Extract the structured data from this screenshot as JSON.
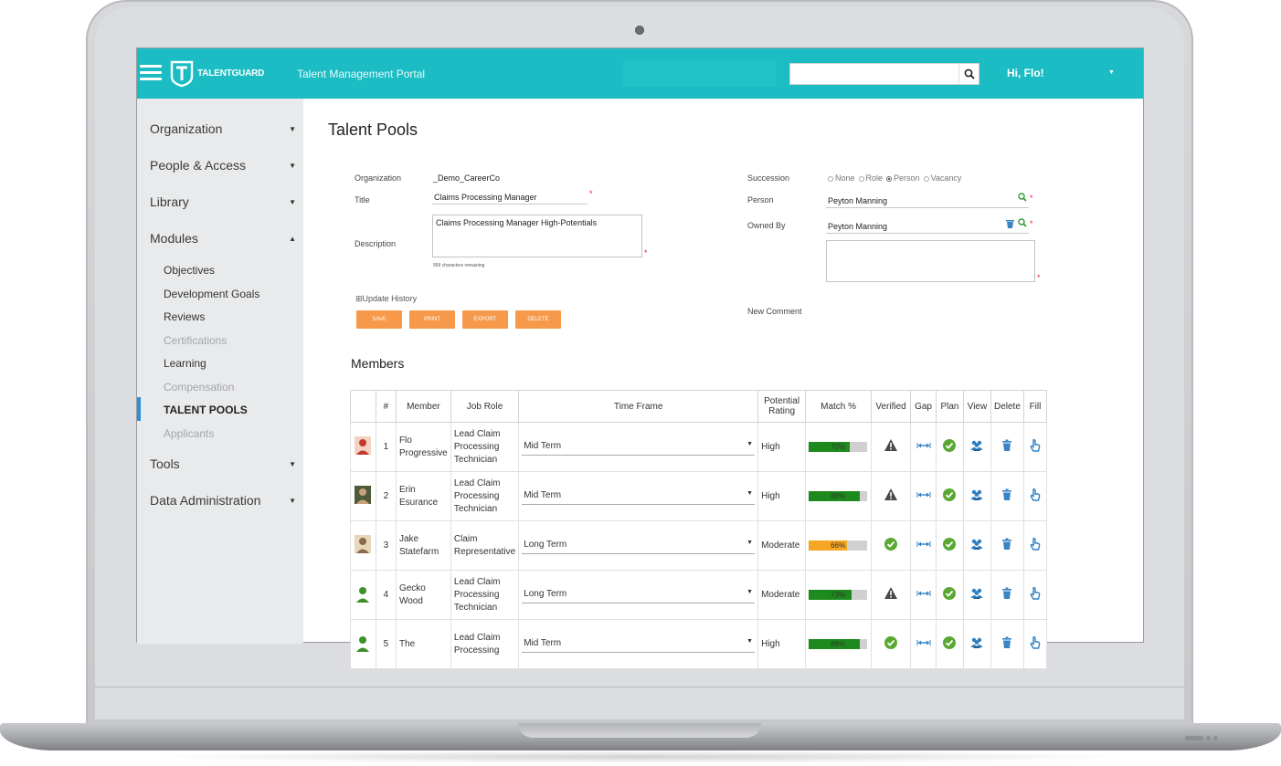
{
  "header": {
    "brand": "TALENTGUARD",
    "portal_title": "Talent Management Portal",
    "search_placeholder": "",
    "greeting": "Hi, Flo!"
  },
  "sidebar": {
    "items": [
      {
        "label": "Organization"
      },
      {
        "label": "People & Access"
      },
      {
        "label": "Library"
      },
      {
        "label": "Modules"
      },
      {
        "label": "Tools"
      },
      {
        "label": "Data Administration"
      }
    ],
    "modules": [
      {
        "label": "Objectives"
      },
      {
        "label": "Development Goals"
      },
      {
        "label": "Reviews"
      },
      {
        "label": "Certifications"
      },
      {
        "label": "Learning"
      },
      {
        "label": "Compensation"
      },
      {
        "label": "TALENT POOLS"
      },
      {
        "label": "Applicants"
      }
    ]
  },
  "page": {
    "title": "Talent Pools"
  },
  "form": {
    "organization_label": "Organization",
    "organization_value": "_Demo_CareerCo",
    "title_label": "Title",
    "title_value": "Claims Processing Manager",
    "description_label": "Description",
    "description_value": "Claims Processing Manager High-Potentials",
    "chars_remaining": "959 characters remaining",
    "succession_label": "Succession",
    "succession_options": [
      "None",
      "Role",
      "Person",
      "Vacancy"
    ],
    "person_label": "Person",
    "person_value": "Peyton Manning",
    "owned_by_label": "Owned By",
    "owned_by_value": "Peyton Manning",
    "new_comment_label": "New Comment",
    "new_comment_value": "",
    "update_history": "Update History",
    "required_mark": "*"
  },
  "buttons": {
    "save": "SAVE",
    "print": "PRINT",
    "export": "EXPORT",
    "delete": "DELETE"
  },
  "members": {
    "title": "Members",
    "columns": [
      "#",
      "Member",
      "Job Role",
      "Time Frame",
      "Potential Rating",
      "Match %",
      "Verified",
      "Gap",
      "Plan",
      "View",
      "Delete",
      "Fill"
    ],
    "rows": [
      {
        "num": "1",
        "member": "Flo Progressive",
        "role": "Lead Claim Processing Technician",
        "timeframe": "Mid Term",
        "rating": "High",
        "match": 70,
        "match_label": "70%",
        "bar_color": "#1e8a1e",
        "verified": "warning-icon"
      },
      {
        "num": "2",
        "member": "Erin Esurance",
        "role": "Lead Claim Processing Technician",
        "timeframe": "Mid Term",
        "rating": "High",
        "match": 88,
        "match_label": "88%",
        "bar_color": "#1e8a1e",
        "verified": "warning-icon"
      },
      {
        "num": "3",
        "member": "Jake Statefarm",
        "role": "Claim Representative",
        "timeframe": "Long Term",
        "rating": "Moderate",
        "match": 66,
        "match_label": "66%",
        "bar_color": "#f5a623",
        "verified": "check-icon"
      },
      {
        "num": "4",
        "member": "Gecko Wood",
        "role": "Lead Claim Processing Technician",
        "timeframe": "Long Term",
        "rating": "Moderate",
        "match": 73,
        "match_label": "73%",
        "bar_color": "#1e8a1e",
        "verified": "warning-icon"
      },
      {
        "num": "5",
        "member": "The",
        "role": "Lead Claim Processing",
        "timeframe": "Mid Term",
        "rating": "High",
        "match": 88,
        "match_label": "88%",
        "bar_color": "#1e8a1e",
        "verified": "check-icon"
      }
    ]
  },
  "colors": {
    "topbar": "#1bbcc3",
    "sidebar": "#e9eaeb",
    "button": "#f6994a",
    "accent_bar": "#2e8fd8",
    "green_check": "#5aa832",
    "icon_blue": "#2f7fc1"
  }
}
